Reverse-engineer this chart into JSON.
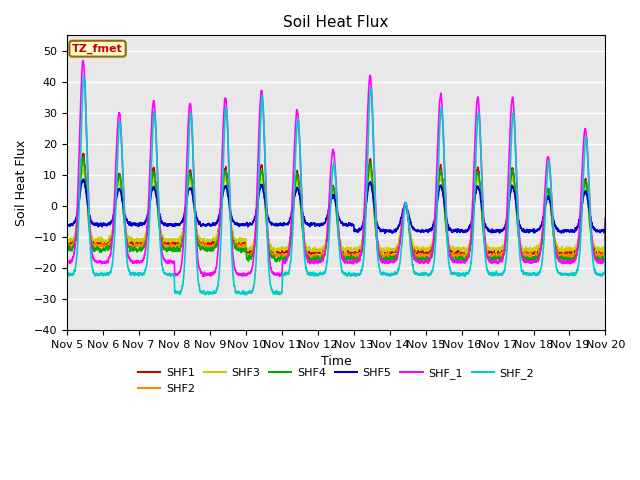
{
  "title": "Soil Heat Flux",
  "xlabel": "Time",
  "ylabel": "Soil Heat Flux",
  "ylim": [
    -40,
    55
  ],
  "bg_color": "#e8e8e8",
  "fig_color": "#ffffff",
  "annotation_text": "TZ_fmet",
  "annotation_bg": "#ffffcc",
  "annotation_border": "#996600",
  "annotation_text_color": "#cc0000",
  "series": {
    "SHF1": {
      "color": "#cc0000",
      "lw": 1.0
    },
    "SHF2": {
      "color": "#ff8800",
      "lw": 1.0
    },
    "SHF3": {
      "color": "#cccc00",
      "lw": 1.0
    },
    "SHF4": {
      "color": "#00aa00",
      "lw": 1.0
    },
    "SHF5": {
      "color": "#0000cc",
      "lw": 1.2
    },
    "SHF_1": {
      "color": "#ff00ff",
      "lw": 1.2
    },
    "SHF_2": {
      "color": "#00cccc",
      "lw": 1.2
    }
  },
  "xtick_labels": [
    "Nov 5",
    "Nov 6",
    "Nov 7",
    "Nov 8",
    "Nov 9",
    "Nov 10",
    "Nov 11",
    "Nov 12",
    "Nov 13",
    "Nov 14",
    "Nov 15",
    "Nov 16",
    "Nov 17",
    "Nov 18",
    "Nov 19",
    "Nov 20"
  ],
  "ytick_values": [
    -40,
    -30,
    -20,
    -10,
    0,
    10,
    20,
    30,
    40,
    50
  ],
  "n_days": 15,
  "points_per_day": 288
}
